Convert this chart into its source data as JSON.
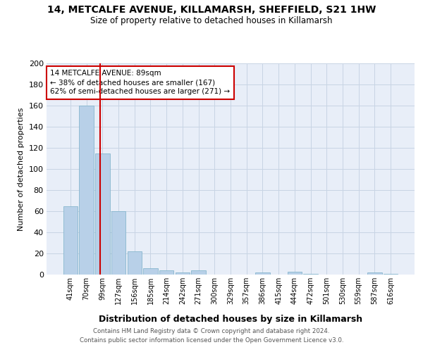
{
  "title": "14, METCALFE AVENUE, KILLAMARSH, SHEFFIELD, S21 1HW",
  "subtitle": "Size of property relative to detached houses in Killamarsh",
  "xlabel": "Distribution of detached houses by size in Killamarsh",
  "ylabel": "Number of detached properties",
  "categories": [
    "41sqm",
    "70sqm",
    "99sqm",
    "127sqm",
    "156sqm",
    "185sqm",
    "214sqm",
    "242sqm",
    "271sqm",
    "300sqm",
    "329sqm",
    "357sqm",
    "386sqm",
    "415sqm",
    "444sqm",
    "472sqm",
    "501sqm",
    "530sqm",
    "559sqm",
    "587sqm",
    "616sqm"
  ],
  "values": [
    65,
    160,
    115,
    60,
    22,
    6,
    4,
    2,
    4,
    0,
    0,
    0,
    2,
    0,
    3,
    1,
    0,
    0,
    0,
    2,
    1
  ],
  "bar_color": "#b8d0e8",
  "bar_edge_color": "#7aafc8",
  "red_line_x": 1.85,
  "annotation_title": "14 METCALFE AVENUE: 89sqm",
  "annotation_line1": "← 38% of detached houses are smaller (167)",
  "annotation_line2": "62% of semi-detached houses are larger (271) →",
  "annotation_box_color": "#ffffff",
  "annotation_box_edge_color": "#cc0000",
  "red_line_color": "#cc0000",
  "grid_color": "#c8d4e4",
  "background_color": "#e8eef8",
  "footer_line1": "Contains HM Land Registry data © Crown copyright and database right 2024.",
  "footer_line2": "Contains public sector information licensed under the Open Government Licence v3.0.",
  "ylim": [
    0,
    200
  ],
  "yticks": [
    0,
    20,
    40,
    60,
    80,
    100,
    120,
    140,
    160,
    180,
    200
  ],
  "title_fontsize": 10,
  "subtitle_fontsize": 9
}
